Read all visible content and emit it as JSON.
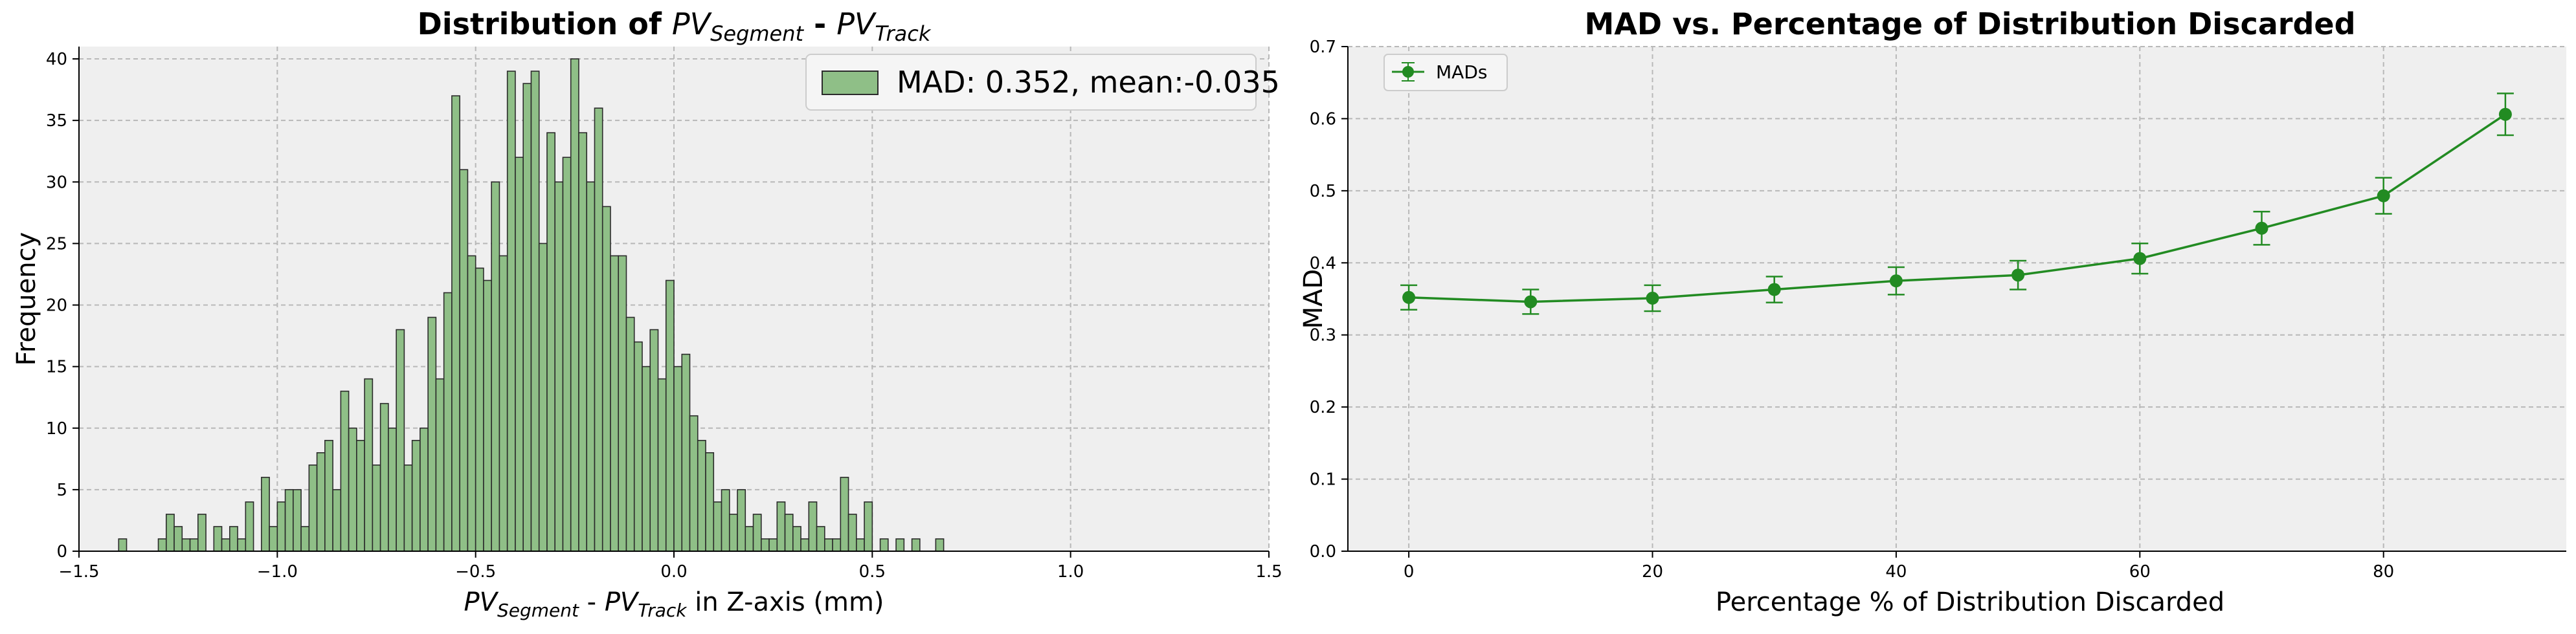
{
  "chart_data": [
    {
      "type": "histogram",
      "title": {
        "prefix": "Distribution of ",
        "a": "PV",
        "a_sub": "Segment",
        "mid": " - ",
        "b": "PV",
        "b_sub": "Track"
      },
      "xlabel": {
        "a": "PV",
        "a_sub": "Segment",
        "mid": " - ",
        "b": "PV",
        "b_sub": "Track",
        "suffix": " in Z-axis (mm)"
      },
      "ylabel": "Frequency",
      "xlim": [
        -1.5,
        1.5
      ],
      "ylim": [
        0,
        41
      ],
      "xticks": [
        -1.5,
        -1.0,
        -0.5,
        0.0,
        0.5,
        1.0,
        1.5
      ],
      "xtick_labels": [
        "−1.5",
        "−1.0",
        "−0.5",
        "0.0",
        "0.5",
        "1.0",
        "1.5"
      ],
      "yticks": [
        0,
        5,
        10,
        15,
        20,
        25,
        30,
        35,
        40
      ],
      "ytick_labels": [
        "0",
        "5",
        "10",
        "15",
        "20",
        "25",
        "30",
        "35",
        "40"
      ],
      "bin_start": -1.4,
      "bin_width": 0.02,
      "counts": [
        1,
        0,
        0,
        0,
        0,
        1,
        3,
        2,
        1,
        1,
        3,
        0,
        2,
        1,
        2,
        1,
        4,
        0,
        6,
        2,
        4,
        5,
        5,
        2,
        7,
        8,
        9,
        5,
        13,
        10,
        9,
        14,
        7,
        12,
        10,
        18,
        7,
        9,
        10,
        19,
        14,
        21,
        37,
        31,
        24,
        23,
        22,
        30,
        24,
        39,
        32,
        38,
        39,
        25,
        34,
        30,
        32,
        40,
        34,
        30,
        36,
        28,
        24,
        24,
        19,
        17,
        15,
        18,
        14,
        22,
        15,
        16,
        11,
        9,
        8,
        4,
        5,
        3,
        5,
        2,
        3,
        1,
        1,
        4,
        3,
        2,
        1,
        4,
        2,
        1,
        1,
        6,
        3,
        1,
        4,
        0,
        1,
        0,
        1,
        0,
        1,
        0,
        0,
        1
      ],
      "legend": {
        "label": "MAD: 0.352, mean:-0.035",
        "position": "upper right"
      },
      "colors": {
        "bar_fill": "#8fbf87",
        "bar_edge": "#2b2b2b",
        "bg": "#efefef",
        "grid": "#b8b8b8"
      }
    },
    {
      "type": "line",
      "title": "MAD vs. Percentage of Distribution Discarded",
      "xlabel": "Percentage % of Distribution Discarded",
      "ylabel": "MAD",
      "xlim": [
        -5,
        95
      ],
      "ylim": [
        0,
        0.7
      ],
      "xticks": [
        0,
        20,
        40,
        60,
        80
      ],
      "xtick_labels": [
        "0",
        "20",
        "40",
        "60",
        "80"
      ],
      "yticks": [
        0.0,
        0.1,
        0.2,
        0.3,
        0.4,
        0.5,
        0.6,
        0.7
      ],
      "ytick_labels": [
        "0.0",
        "0.1",
        "0.2",
        "0.3",
        "0.4",
        "0.5",
        "0.6",
        "0.7"
      ],
      "series": [
        {
          "name": "MADs",
          "x": [
            0,
            10,
            20,
            30,
            40,
            50,
            60,
            70,
            80,
            90
          ],
          "y": [
            0.352,
            0.346,
            0.351,
            0.363,
            0.375,
            0.383,
            0.406,
            0.448,
            0.493,
            0.606
          ],
          "yerr": [
            0.017,
            0.017,
            0.018,
            0.018,
            0.019,
            0.02,
            0.021,
            0.023,
            0.025,
            0.029
          ]
        }
      ],
      "legend": {
        "position": "upper left"
      },
      "colors": {
        "line": "#228b22",
        "bg": "#efefef",
        "grid": "#b8b8b8"
      }
    }
  ]
}
